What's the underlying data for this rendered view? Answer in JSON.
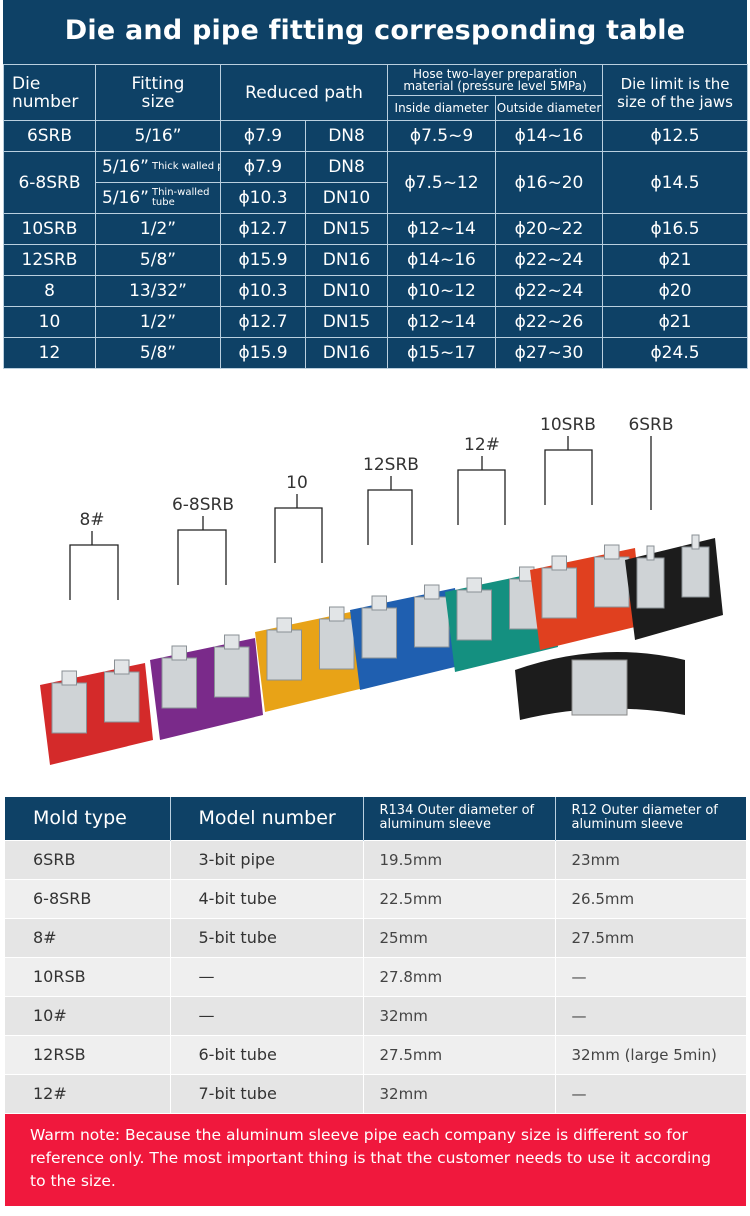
{
  "title": "Die and pipe fitting corresponding table",
  "table1": {
    "headers": {
      "die_number": "Die number",
      "fitting_size": "Fitting size",
      "reduced_path": "Reduced path",
      "hose": "Hose two-layer preparation material (pressure level 5MPa)",
      "inside": "Inside diameter",
      "outside": "Outside diameter",
      "limit": "Die limit is the size of the jaws"
    },
    "rows": [
      {
        "die": "6SRB",
        "fit": "5/16”",
        "phi": "ϕ7.9",
        "dn": "DN8",
        "in": "ϕ7.5~9",
        "out": "ϕ14~16",
        "lim": "ϕ12.5"
      },
      {
        "die": "6-8SRB",
        "fit": "5/16”",
        "fit_note": "Thick walled pipe",
        "phi": "ϕ7.9",
        "dn": "DN8",
        "fit2": "5/16”",
        "fit2_note": "Thin-walled tube",
        "phi2": "ϕ10.3",
        "dn2": "DN10",
        "in": "ϕ7.5~12",
        "out": "ϕ16~20",
        "lim": "ϕ14.5"
      },
      {
        "die": "10SRB",
        "fit": "1/2”",
        "phi": "ϕ12.7",
        "dn": "DN15",
        "in": "ϕ12~14",
        "out": "ϕ20~22",
        "lim": "ϕ16.5"
      },
      {
        "die": "12SRB",
        "fit": "5/8”",
        "phi": "ϕ15.9",
        "dn": "DN16",
        "in": "ϕ14~16",
        "out": "ϕ22~24",
        "lim": "ϕ21"
      },
      {
        "die": "8",
        "fit": "13/32”",
        "phi": "ϕ10.3",
        "dn": "DN10",
        "in": "ϕ10~12",
        "out": "ϕ22~24",
        "lim": "ϕ20"
      },
      {
        "die": "10",
        "fit": "1/2”",
        "phi": "ϕ12.7",
        "dn": "DN15",
        "in": "ϕ12~14",
        "out": "ϕ22~26",
        "lim": "ϕ21"
      },
      {
        "die": "12",
        "fit": "5/8”",
        "phi": "ϕ15.9",
        "dn": "DN16",
        "in": "ϕ15~17",
        "out": "ϕ27~30",
        "lim": "ϕ24.5"
      }
    ]
  },
  "photo_labels": [
    "8#",
    "6-8SRB",
    "10",
    "12SRB",
    "12#",
    "10SRB",
    "6SRB"
  ],
  "table2": {
    "headers": [
      "Mold type",
      "Model number",
      "R134 Outer diameter of aluminum sleeve",
      "R12 Outer diameter of aluminum sleeve"
    ],
    "rows": [
      [
        "6SRB",
        "3-bit pipe",
        "19.5mm",
        "23mm"
      ],
      [
        "6-8SRB",
        "4-bit tube",
        "22.5mm",
        "26.5mm"
      ],
      [
        "8#",
        "5-bit tube",
        "25mm",
        "27.5mm"
      ],
      [
        "10RSB",
        "—",
        "27.8mm",
        "—"
      ],
      [
        "10#",
        "—",
        "32mm",
        "—"
      ],
      [
        "12RSB",
        "6-bit tube",
        "27.5mm",
        "32mm (large 5min)"
      ],
      [
        "12#",
        "7-bit tube",
        "32mm",
        "—"
      ]
    ]
  },
  "note": "Warm note: Because the aluminum sleeve pipe each company size is different so for reference only. The most important thing is that the customer needs to use it according to the size.",
  "colors": {
    "navy": "#0e4166",
    "note_red": "#f0183d",
    "die_colors": [
      "#d42a2a",
      "#7a2a8a",
      "#e8a317",
      "#1f5fb0",
      "#149080",
      "#e0401f",
      "#1c1c1c"
    ]
  }
}
